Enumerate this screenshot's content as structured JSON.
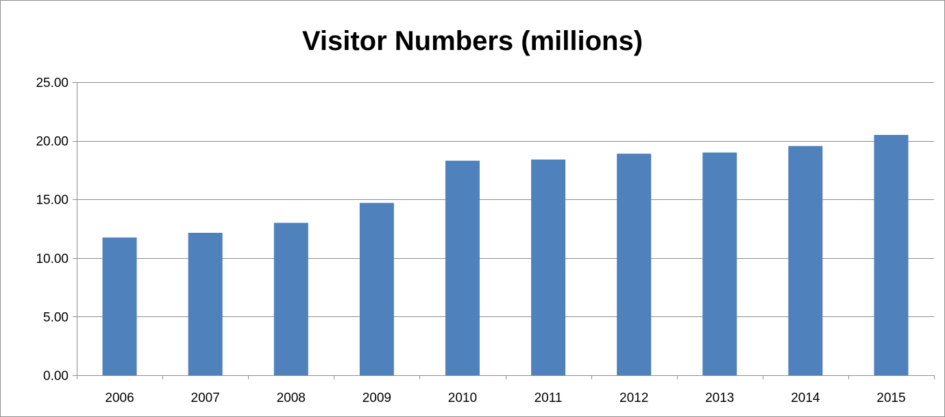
{
  "chart_data": {
    "type": "bar",
    "title": "Visitor Numbers (millions)",
    "xlabel": "",
    "ylabel": "",
    "categories": [
      "2006",
      "2007",
      "2008",
      "2009",
      "2010",
      "2011",
      "2012",
      "2013",
      "2014",
      "2015"
    ],
    "values": [
      11.75,
      12.15,
      13.0,
      14.7,
      18.3,
      18.4,
      18.9,
      19.0,
      19.55,
      20.5
    ],
    "ylim": [
      0,
      25
    ],
    "yticks": [
      "0.00",
      "5.00",
      "10.00",
      "15.00",
      "20.00",
      "25.00"
    ],
    "ytick_values": [
      0,
      5,
      10,
      15,
      20,
      25
    ],
    "grid": true,
    "legend": "none",
    "bar_color": "#4f81bd",
    "grid_color": "#8c8c8c"
  }
}
